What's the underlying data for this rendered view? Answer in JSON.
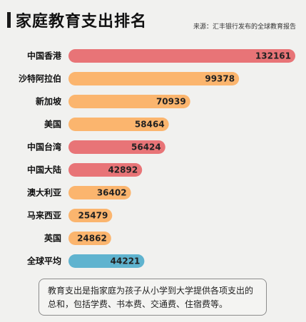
{
  "header": {
    "title": "家庭教育支出排名",
    "source": "来源：汇丰银行发布的全球教育报告"
  },
  "note": "教育支出是指家庭为孩子从小学到大学提供各项支出的总和，包括学费、书本费、交通费、住宿费等。",
  "colors": {
    "red": "#e87477",
    "orange": "#fbb56e",
    "blue": "#5fb3cf"
  },
  "chart_data": {
    "type": "bar",
    "orientation": "horizontal",
    "categories": [
      "中国香港",
      "沙特阿拉伯",
      "新加坡",
      "美国",
      "中国台湾",
      "中国大陆",
      "澳大利亚",
      "马来西亚",
      "英国",
      "全球平均"
    ],
    "values": [
      132161,
      99378,
      70939,
      58464,
      56424,
      42892,
      36402,
      25479,
      24862,
      44221
    ],
    "value_labels": [
      "132161",
      "99378",
      "70939",
      "58464",
      "56424",
      "42892",
      "36402",
      "25479",
      "24862",
      "44221"
    ],
    "bar_colors": [
      "red",
      "orange",
      "orange",
      "orange",
      "red",
      "red",
      "orange",
      "orange",
      "orange",
      "blue"
    ],
    "xlim": [
      0,
      132161
    ],
    "grid": false,
    "legend": "none"
  }
}
